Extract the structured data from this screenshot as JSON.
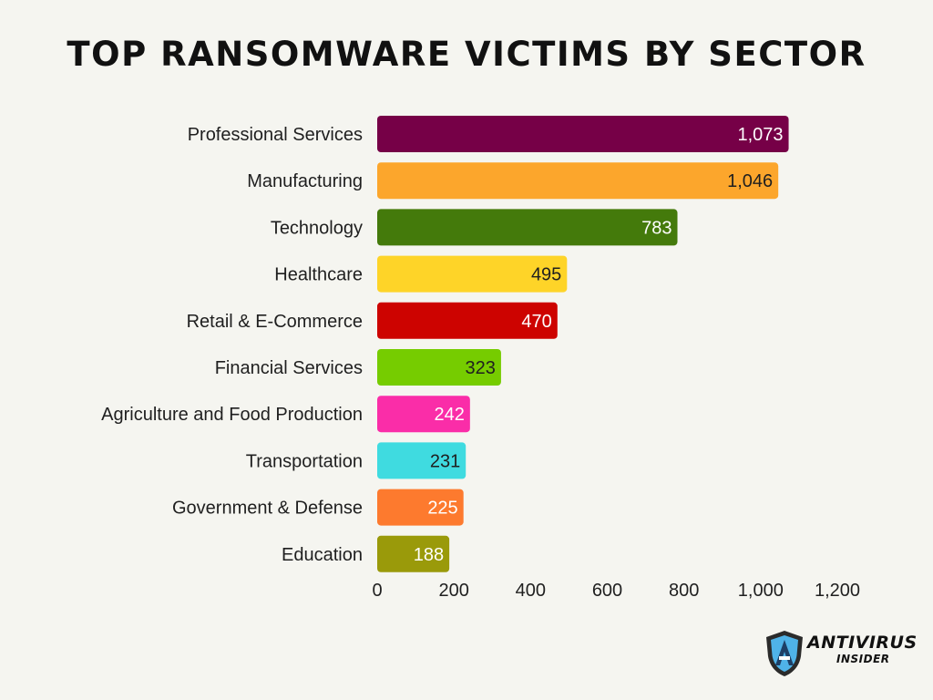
{
  "title": "TOP RANSOMWARE VICTIMS BY SECTOR",
  "brand": {
    "line1": "ANTIVIRUS",
    "line2": "INSIDER"
  },
  "chart_data": {
    "type": "bar",
    "orientation": "horizontal",
    "title": "TOP RANSOMWARE VICTIMS BY SECTOR",
    "xlabel": "",
    "ylabel": "",
    "categories": [
      "Professional Services",
      "Manufacturing",
      "Technology",
      "Healthcare",
      "Retail & E-Commerce",
      "Financial Services",
      "Agriculture and Food Production",
      "Transportation",
      "Government & Defense",
      "Education"
    ],
    "values": [
      1073,
      1046,
      783,
      495,
      470,
      323,
      242,
      231,
      225,
      188
    ],
    "value_labels": [
      "1,073",
      "1,046",
      "783",
      "495",
      "470",
      "323",
      "242",
      "231",
      "225",
      "188"
    ],
    "colors": [
      "#760047",
      "#fca62c",
      "#447a0b",
      "#fed428",
      "#cd0300",
      "#76cc00",
      "#fa2da8",
      "#3fdbe0",
      "#fd7a2e",
      "#9a9a0a"
    ],
    "label_colors": [
      "#ffffff",
      "#1f1f1f",
      "#ffffff",
      "#1f1f1f",
      "#ffffff",
      "#1f1f1f",
      "#ffffff",
      "#1f1f1f",
      "#ffffff",
      "#ffffff"
    ],
    "xlim": [
      0,
      1200
    ],
    "x_ticks": [
      0,
      200,
      400,
      600,
      800,
      1000,
      1200
    ],
    "x_tick_labels": [
      "0",
      "200",
      "400",
      "600",
      "800",
      "1,000",
      "1,200"
    ],
    "grid": false,
    "legend": "none"
  }
}
